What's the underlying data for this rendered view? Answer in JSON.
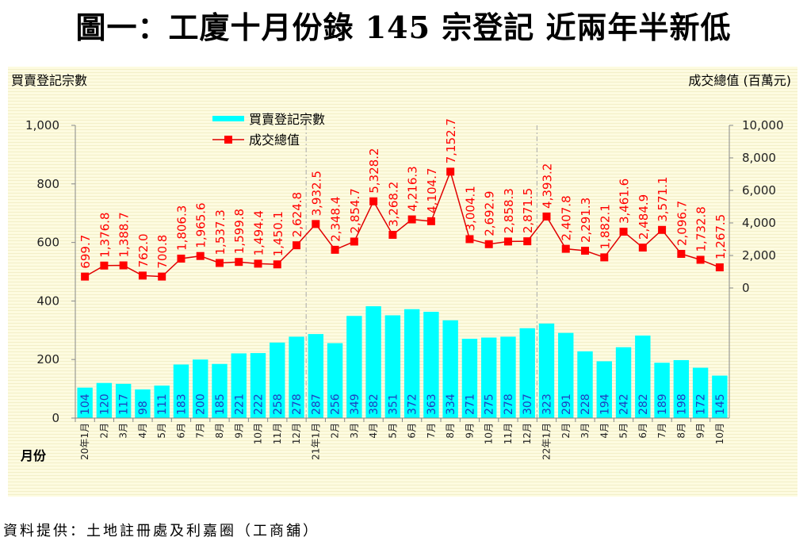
{
  "title": "圖一：工廈十月份錄 145 宗登記  近兩年半新低",
  "source": "資料提供：土地註冊處及利嘉圈（工商舖）",
  "colors": {
    "bar": "#00ffff",
    "line": "#ff0000",
    "bar_label": "#1f3fbf",
    "background": "#fdfbe0"
  },
  "chart_data": {
    "type": "bar+line",
    "title": "圖一：工廈十月份錄 145 宗登記  近兩年半新低",
    "xlabel": "月份",
    "ylabel_left": "買賣登記宗數",
    "ylabel_right": "成交總值 (百萬元)",
    "ylim_left": [
      0,
      1000
    ],
    "yticks_left": [
      "0",
      "200",
      "400",
      "600",
      "800",
      "1,000"
    ],
    "ylim_right": [
      -8000,
      10000
    ],
    "yticks_right": [
      "0",
      "2,000",
      "4,000",
      "6,000",
      "8,000",
      "10,000"
    ],
    "categories": [
      "20年1月",
      "2月",
      "3月",
      "4月",
      "5月",
      "6月",
      "7月",
      "8月",
      "9月",
      "10月",
      "11月",
      "12月",
      "21年1月",
      "2月",
      "3月",
      "4月",
      "5月",
      "6月",
      "7月",
      "8月",
      "9月",
      "10月",
      "11月",
      "12月",
      "22年1月",
      "2月",
      "3月",
      "4月",
      "5月",
      "6月",
      "7月",
      "8月",
      "9月",
      "10月"
    ],
    "series": [
      {
        "name": "買賣登記宗數",
        "type": "bar",
        "axis": "left",
        "values": [
          104,
          120,
          117,
          98,
          111,
          183,
          200,
          185,
          221,
          222,
          258,
          278,
          287,
          256,
          349,
          382,
          351,
          372,
          363,
          334,
          271,
          275,
          278,
          307,
          323,
          291,
          228,
          194,
          242,
          282,
          189,
          198,
          172,
          145
        ],
        "labels": [
          "104",
          "120",
          "117",
          "98",
          "111",
          "183",
          "200",
          "185",
          "221",
          "222",
          "258",
          "278",
          "287",
          "256",
          "349",
          "382",
          "351",
          "372",
          "363",
          "334",
          "271",
          "275",
          "278",
          "307",
          "323",
          "291",
          "228",
          "194",
          "242",
          "282",
          "189",
          "198",
          "172",
          "145"
        ]
      },
      {
        "name": "成交總值",
        "type": "line",
        "axis": "right",
        "values": [
          699.7,
          1376.8,
          1388.7,
          762.0,
          700.8,
          1806.3,
          1965.6,
          1537.3,
          1599.8,
          1494.4,
          1450.1,
          2624.8,
          3932.5,
          2348.4,
          2854.7,
          5328.2,
          3268.2,
          4216.3,
          4104.7,
          7152.7,
          3004.1,
          2692.9,
          2858.3,
          2871.5,
          4393.2,
          2407.8,
          2291.3,
          1882.1,
          3461.6,
          2484.9,
          3571.1,
          2096.7,
          1732.8,
          1267.5
        ],
        "labels": [
          "699.7",
          "1,376.8",
          "1,388.7",
          "762.0",
          "700.8",
          "1,806.3",
          "1,965.6",
          "1,537.3",
          "1,599.8",
          "1,494.4",
          "1,450.1",
          "2,624.8",
          "3,932.5",
          "2,348.4",
          "2,854.7",
          "5,328.2",
          "3,268.2",
          "4,216.3",
          "4,104.7",
          "7,152.7",
          "3,004.1",
          "2,692.9",
          "2,858.3",
          "2,871.5",
          "4,393.2",
          "2,407.8",
          "2,291.3",
          "1,882.1",
          "3,461.6",
          "2,484.9",
          "3,571.1",
          "2,096.7",
          "1,732.8",
          "1,267.5"
        ]
      }
    ],
    "year_dividers_after_index": [
      11,
      23
    ],
    "legend": {
      "placement": "top-left",
      "entries": [
        "買賣登記宗數",
        "成交總值"
      ]
    },
    "grid": false
  }
}
